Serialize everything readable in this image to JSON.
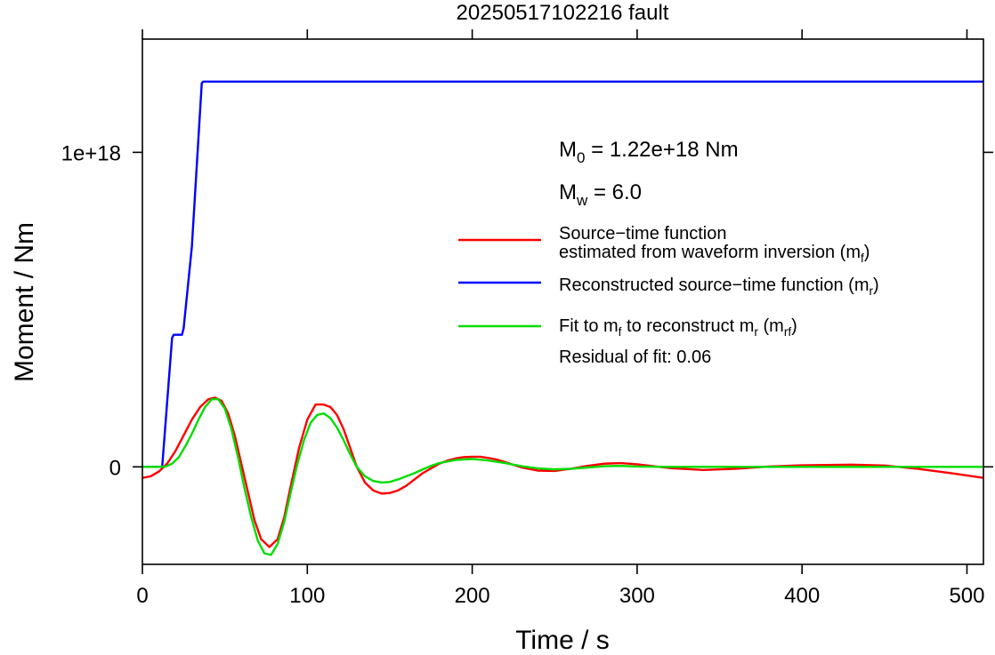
{
  "chart_data": {
    "type": "line",
    "title": "20250517102216 fault",
    "xlabel": "Time / s",
    "ylabel": "Moment / Nm",
    "xlim": [
      0,
      510
    ],
    "ylim": [
      -3.1e+17,
      1.36e+18
    ],
    "x_ticks": [
      {
        "value": 0,
        "label": "0"
      },
      {
        "value": 100,
        "label": "100"
      },
      {
        "value": 200,
        "label": "200"
      },
      {
        "value": 300,
        "label": "300"
      },
      {
        "value": 400,
        "label": "400"
      },
      {
        "value": 500,
        "label": "500"
      }
    ],
    "y_ticks": [
      {
        "value": 0,
        "label": "0"
      },
      {
        "value": 1e+18,
        "label": "1e+18"
      }
    ],
    "grid": false,
    "legend_position": "right",
    "annotations": {
      "m0": {
        "sym": "M",
        "sub": "0",
        "text": " = 1.22e+18 Nm"
      },
      "mw": {
        "sym": "M",
        "sub": "w",
        "text": " = 6.0"
      },
      "residual": "Residual of fit: 0.06"
    },
    "legend": [
      {
        "color": "#ff0000",
        "lines": [
          [
            {
              "t": "Source−time function"
            }
          ],
          [
            {
              "t": "estimated from waveform inversion (m"
            },
            {
              "t": "f",
              "sub": true
            },
            {
              "t": ")"
            }
          ]
        ]
      },
      {
        "color": "#0000ff",
        "lines": [
          [
            {
              "t": "Reconstructed source−time function (m"
            },
            {
              "t": "r",
              "sub": true
            },
            {
              "t": ")"
            }
          ]
        ]
      },
      {
        "color": "#00dd00",
        "lines": [
          [
            {
              "t": "Fit to m"
            },
            {
              "t": "f",
              "sub": true
            },
            {
              "t": " to reconstruct m"
            },
            {
              "t": "r",
              "sub": true
            },
            {
              "t": " (m"
            },
            {
              "t": "rf",
              "sub": true
            },
            {
              "t": ")"
            }
          ]
        ]
      }
    ],
    "series": [
      {
        "color": "#ff0000",
        "x": [
          0,
          5,
          10,
          15,
          20,
          25,
          30,
          35,
          40,
          44,
          48,
          52,
          56,
          60,
          64,
          68,
          72,
          77,
          82,
          86,
          90,
          95,
          100,
          105,
          110,
          114,
          118,
          122,
          126,
          130,
          135,
          140,
          145,
          150,
          155,
          160,
          165,
          170,
          175,
          180,
          185,
          190,
          195,
          200,
          205,
          210,
          215,
          220,
          230,
          240,
          250,
          260,
          270,
          280,
          290,
          300,
          320,
          340,
          360,
          380,
          400,
          430,
          450,
          470,
          490,
          510
        ],
        "y": [
          -3.5e+16,
          -3e+16,
          -1.5e+16,
          1e+16,
          5e+16,
          1e+17,
          1.5e+17,
          1.9e+17,
          2.15e+17,
          2.2e+17,
          2.1e+17,
          1.7e+17,
          1e+17,
          1e+16,
          -8e+16,
          -1.7e+17,
          -2.3e+17,
          -2.55e+17,
          -2.3e+17,
          -1.6e+17,
          -6e+16,
          6e+16,
          1.5e+17,
          1.98e+17,
          1.98e+17,
          1.9e+17,
          1.65e+17,
          1.2e+17,
          6e+16,
          0,
          -5e+16,
          -7.5e+16,
          -8.5e+16,
          -8.3e+16,
          -7.5e+16,
          -6e+16,
          -4e+16,
          -2e+16,
          -5000000000000000.0,
          1e+16,
          2e+16,
          2.7e+16,
          3.1e+16,
          3.2e+16,
          3.2e+16,
          2.8e+16,
          2.3e+16,
          1.5e+16,
          -2000000000000000.0,
          -1.2e+16,
          -1.3e+16,
          -6000000000000000.0,
          3000000000000000.0,
          1e+16,
          1.2e+16,
          8000000000000000.0,
          -4000000000000000.0,
          -1e+16,
          -6000000000000000.0,
          1000000000000000.0,
          5000000000000000.0,
          7000000000000000.0,
          4000000000000000.0,
          -6000000000000000.0,
          -2e+16,
          -3.5e+16
        ]
      },
      {
        "color": "#0000ff",
        "x": [
          0,
          12,
          18,
          19,
          24,
          25,
          30,
          36,
          37,
          510
        ],
        "y": [
          0,
          0,
          4.1e+17,
          4.2e+17,
          4.2e+17,
          4.4e+17,
          7e+17,
          1.22e+18,
          1.225e+18,
          1.225e+18
        ]
      },
      {
        "color": "#00dd00",
        "x": [
          0,
          10,
          14,
          18,
          22,
          26,
          30,
          34,
          38,
          42,
          46,
          50,
          54,
          58,
          62,
          66,
          70,
          74,
          78,
          82,
          86,
          90,
          94,
          98,
          102,
          106,
          110,
          114,
          118,
          122,
          126,
          130,
          135,
          140,
          145,
          150,
          155,
          160,
          165,
          170,
          175,
          180,
          190,
          200,
          210,
          220,
          230,
          240,
          250,
          260,
          270,
          280,
          290,
          300,
          320,
          340,
          360,
          380,
          400,
          450,
          510
        ],
        "y": [
          0,
          0,
          1000000000000000.0,
          1e+16,
          3e+16,
          6.5e+16,
          1.05e+17,
          1.5e+17,
          1.9e+17,
          2.15e+17,
          2.15e+17,
          1.85e+17,
          1.2e+17,
          3e+16,
          -7e+16,
          -1.6e+17,
          -2.35e+17,
          -2.75e+17,
          -2.8e+17,
          -2.45e+17,
          -1.75e+17,
          -8e+16,
          1e+16,
          8.5e+16,
          1.4e+17,
          1.65e+17,
          1.7e+17,
          1.55e+17,
          1.25e+17,
          8.5e+16,
          4e+16,
          0,
          -3e+16,
          -4.5e+16,
          -5e+16,
          -4.8e+16,
          -4e+16,
          -3e+16,
          -2e+16,
          -8000000000000000.0,
          3000000000000000.0,
          1.2e+16,
          2.2e+16,
          2.5e+16,
          2e+16,
          1.2e+16,
          2000000000000000.0,
          -5000000000000000.0,
          -8000000000000000.0,
          -6000000000000000.0,
          -2000000000000000.0,
          2000000000000000.0,
          3000000000000000.0,
          1000000000000000.0,
          0,
          0,
          0,
          0,
          0,
          0,
          0
        ]
      }
    ]
  }
}
